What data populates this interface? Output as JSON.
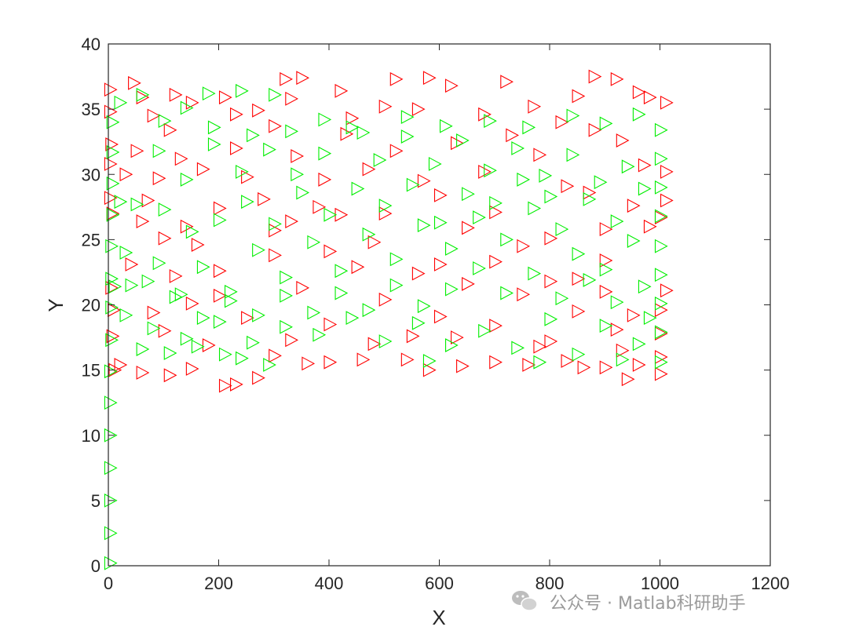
{
  "chart_data": {
    "type": "scatter",
    "xlabel": "X",
    "ylabel": "Y",
    "xlim": [
      0,
      1200
    ],
    "ylim": [
      0,
      40
    ],
    "xticks": [
      "0",
      "200",
      "400",
      "600",
      "800",
      "1000",
      "1200"
    ],
    "yticks": [
      "0",
      "5",
      "10",
      "15",
      "20",
      "25",
      "30",
      "35",
      "40"
    ],
    "grid": false,
    "marker": "right-pointing triangle (hollow)",
    "series": [
      {
        "color": "#ff0000",
        "values": [
          [
            2,
            36.5
          ],
          [
            2,
            34.8
          ],
          [
            4,
            32.3
          ],
          [
            2,
            30.8
          ],
          [
            2,
            28.2
          ],
          [
            6,
            27.0
          ],
          [
            4,
            21.3
          ],
          [
            8,
            19.6
          ],
          [
            6,
            17.6
          ],
          [
            10,
            15.0
          ],
          [
            45,
            37.0
          ],
          [
            60,
            35.9
          ],
          [
            80,
            34.5
          ],
          [
            120,
            36.1
          ],
          [
            150,
            35.5
          ],
          [
            210,
            35.9
          ],
          [
            270,
            34.9
          ],
          [
            320,
            37.3
          ],
          [
            350,
            37.4
          ],
          [
            420,
            36.4
          ],
          [
            500,
            35.2
          ],
          [
            520,
            37.3
          ],
          [
            580,
            37.4
          ],
          [
            620,
            36.8
          ],
          [
            720,
            37.1
          ],
          [
            850,
            36.0
          ],
          [
            880,
            37.5
          ],
          [
            920,
            37.3
          ],
          [
            960,
            36.3
          ],
          [
            980,
            35.9
          ],
          [
            1010,
            35.5
          ],
          [
            1010,
            30.2
          ],
          [
            1010,
            28.0
          ],
          [
            1000,
            26.7
          ],
          [
            1010,
            21.1
          ],
          [
            1000,
            19.6
          ],
          [
            1000,
            16.0
          ],
          [
            1000,
            14.7
          ],
          [
            960,
            15.4
          ],
          [
            940,
            14.3
          ],
          [
            900,
            15.2
          ],
          [
            860,
            15.2
          ],
          [
            830,
            15.7
          ],
          [
            760,
            15.4
          ],
          [
            700,
            15.6
          ],
          [
            640,
            15.3
          ],
          [
            580,
            15.0
          ],
          [
            540,
            15.8
          ],
          [
            460,
            15.8
          ],
          [
            400,
            15.6
          ],
          [
            360,
            15.5
          ],
          [
            300,
            16.1
          ],
          [
            270,
            14.4
          ],
          [
            230,
            13.9
          ],
          [
            210,
            13.8
          ],
          [
            150,
            15.1
          ],
          [
            110,
            14.6
          ],
          [
            60,
            14.8
          ],
          [
            20,
            15.4
          ],
          [
            50,
            31.8
          ],
          [
            90,
            29.7
          ],
          [
            130,
            31.2
          ],
          [
            170,
            30.4
          ],
          [
            230,
            32.0
          ],
          [
            280,
            28.1
          ],
          [
            330,
            26.4
          ],
          [
            380,
            27.5
          ],
          [
            420,
            26.9
          ],
          [
            480,
            24.8
          ],
          [
            560,
            22.4
          ],
          [
            600,
            23.1
          ],
          [
            650,
            25.9
          ],
          [
            700,
            27.1
          ],
          [
            750,
            24.5
          ],
          [
            800,
            25.1
          ],
          [
            850,
            22.0
          ],
          [
            900,
            21.0
          ],
          [
            950,
            19.2
          ],
          [
            980,
            26.0
          ],
          [
            970,
            30.7
          ],
          [
            930,
            32.6
          ],
          [
            880,
            33.4
          ],
          [
            830,
            29.1
          ],
          [
            780,
            31.5
          ],
          [
            730,
            33.0
          ],
          [
            680,
            30.2
          ],
          [
            630,
            32.4
          ],
          [
            570,
            29.5
          ],
          [
            520,
            31.8
          ],
          [
            470,
            30.4
          ],
          [
            430,
            33.1
          ],
          [
            390,
            29.6
          ],
          [
            340,
            31.4
          ],
          [
            300,
            33.7
          ],
          [
            250,
            29.8
          ],
          [
            200,
            27.4
          ],
          [
            160,
            24.6
          ],
          [
            120,
            22.2
          ],
          [
            80,
            19.4
          ],
          [
            40,
            23.1
          ],
          [
            60,
            26.4
          ],
          [
            100,
            18.0
          ],
          [
            150,
            20.1
          ],
          [
            200,
            22.6
          ],
          [
            250,
            19.0
          ],
          [
            300,
            23.8
          ],
          [
            350,
            21.3
          ],
          [
            400,
            18.5
          ],
          [
            450,
            22.9
          ],
          [
            500,
            20.4
          ],
          [
            550,
            17.6
          ],
          [
            600,
            19.1
          ],
          [
            650,
            21.6
          ],
          [
            700,
            18.4
          ],
          [
            750,
            20.8
          ],
          [
            800,
            17.2
          ],
          [
            850,
            19.5
          ],
          [
            900,
            23.4
          ],
          [
            950,
            27.6
          ],
          [
            920,
            18.1
          ],
          [
            870,
            28.6
          ],
          [
            820,
            34.0
          ],
          [
            770,
            35.2
          ],
          [
            680,
            34.6
          ],
          [
            560,
            35.0
          ],
          [
            440,
            34.3
          ],
          [
            330,
            35.8
          ],
          [
            230,
            34.6
          ],
          [
            110,
            33.4
          ],
          [
            30,
            30.0
          ],
          [
            70,
            28.0
          ],
          [
            140,
            26.0
          ],
          [
            180,
            16.9
          ],
          [
            330,
            17.3
          ],
          [
            480,
            17.0
          ],
          [
            630,
            17.5
          ],
          [
            780,
            16.8
          ],
          [
            930,
            16.5
          ],
          [
            1000,
            17.8
          ],
          [
            600,
            28.4
          ],
          [
            500,
            27.0
          ],
          [
            400,
            24.1
          ],
          [
            300,
            25.7
          ],
          [
            200,
            20.7
          ],
          [
            100,
            25.1
          ],
          [
            700,
            23.3
          ],
          [
            800,
            21.8
          ],
          [
            900,
            25.8
          ]
        ]
      },
      {
        "color": "#00ee00",
        "values": [
          [
            2,
            0.2
          ],
          [
            2,
            2.5
          ],
          [
            2,
            5.0
          ],
          [
            2,
            7.5
          ],
          [
            2,
            10.0
          ],
          [
            2,
            12.5
          ],
          [
            2,
            14.9
          ],
          [
            4,
            17.3
          ],
          [
            4,
            19.8
          ],
          [
            4,
            22.0
          ],
          [
            4,
            24.5
          ],
          [
            6,
            26.9
          ],
          [
            6,
            29.3
          ],
          [
            6,
            31.7
          ],
          [
            6,
            34.0
          ],
          [
            240,
            36.4
          ],
          [
            300,
            36.1
          ],
          [
            180,
            36.2
          ],
          [
            20,
            35.5
          ],
          [
            60,
            36.1
          ],
          [
            100,
            34.1
          ],
          [
            140,
            35.1
          ],
          [
            190,
            33.6
          ],
          [
            260,
            33.0
          ],
          [
            330,
            33.3
          ],
          [
            390,
            34.2
          ],
          [
            460,
            33.2
          ],
          [
            540,
            34.4
          ],
          [
            610,
            33.7
          ],
          [
            690,
            34.1
          ],
          [
            760,
            33.6
          ],
          [
            840,
            34.5
          ],
          [
            900,
            33.9
          ],
          [
            960,
            34.6
          ],
          [
            1000,
            33.4
          ],
          [
            1000,
            31.2
          ],
          [
            1000,
            29.0
          ],
          [
            1000,
            26.8
          ],
          [
            1000,
            24.5
          ],
          [
            1000,
            22.3
          ],
          [
            1000,
            20.1
          ],
          [
            1000,
            17.9
          ],
          [
            1000,
            15.6
          ],
          [
            960,
            17.0
          ],
          [
            900,
            18.4
          ],
          [
            850,
            16.2
          ],
          [
            800,
            18.9
          ],
          [
            740,
            16.7
          ],
          [
            680,
            18.0
          ],
          [
            620,
            16.9
          ],
          [
            560,
            18.6
          ],
          [
            500,
            17.2
          ],
          [
            440,
            19.0
          ],
          [
            380,
            17.7
          ],
          [
            320,
            18.3
          ],
          [
            260,
            17.1
          ],
          [
            200,
            18.7
          ],
          [
            140,
            17.4
          ],
          [
            80,
            18.2
          ],
          [
            30,
            19.2
          ],
          [
            40,
            21.5
          ],
          [
            90,
            23.2
          ],
          [
            130,
            20.8
          ],
          [
            170,
            22.9
          ],
          [
            220,
            21.0
          ],
          [
            270,
            24.2
          ],
          [
            320,
            22.1
          ],
          [
            370,
            24.8
          ],
          [
            420,
            22.6
          ],
          [
            470,
            25.4
          ],
          [
            520,
            23.5
          ],
          [
            570,
            26.1
          ],
          [
            620,
            24.3
          ],
          [
            670,
            26.7
          ],
          [
            720,
            25.0
          ],
          [
            770,
            27.4
          ],
          [
            820,
            25.8
          ],
          [
            870,
            28.1
          ],
          [
            920,
            26.4
          ],
          [
            970,
            28.9
          ],
          [
            940,
            30.6
          ],
          [
            890,
            29.4
          ],
          [
            840,
            31.5
          ],
          [
            790,
            29.9
          ],
          [
            740,
            32.0
          ],
          [
            690,
            30.3
          ],
          [
            640,
            32.6
          ],
          [
            590,
            30.8
          ],
          [
            540,
            32.9
          ],
          [
            490,
            31.1
          ],
          [
            440,
            33.6
          ],
          [
            390,
            31.6
          ],
          [
            340,
            30.0
          ],
          [
            290,
            31.9
          ],
          [
            240,
            30.2
          ],
          [
            190,
            32.3
          ],
          [
            140,
            29.6
          ],
          [
            90,
            31.8
          ],
          [
            50,
            27.7
          ],
          [
            100,
            27.3
          ],
          [
            150,
            25.6
          ],
          [
            200,
            26.5
          ],
          [
            250,
            27.9
          ],
          [
            300,
            26.2
          ],
          [
            350,
            28.6
          ],
          [
            400,
            26.9
          ],
          [
            450,
            28.9
          ],
          [
            500,
            27.6
          ],
          [
            550,
            29.2
          ],
          [
            600,
            26.3
          ],
          [
            650,
            28.5
          ],
          [
            700,
            27.8
          ],
          [
            750,
            29.6
          ],
          [
            800,
            28.3
          ],
          [
            850,
            23.9
          ],
          [
            900,
            22.7
          ],
          [
            950,
            24.9
          ],
          [
            970,
            21.4
          ],
          [
            920,
            20.2
          ],
          [
            870,
            21.9
          ],
          [
            820,
            20.5
          ],
          [
            770,
            22.4
          ],
          [
            720,
            20.9
          ],
          [
            670,
            22.8
          ],
          [
            620,
            21.2
          ],
          [
            570,
            19.9
          ],
          [
            520,
            21.5
          ],
          [
            470,
            19.6
          ],
          [
            420,
            20.9
          ],
          [
            370,
            19.4
          ],
          [
            320,
            20.7
          ],
          [
            270,
            19.2
          ],
          [
            220,
            20.3
          ],
          [
            170,
            19.0
          ],
          [
            120,
            20.6
          ],
          [
            70,
            21.8
          ],
          [
            60,
            16.6
          ],
          [
            110,
            16.3
          ],
          [
            160,
            16.8
          ],
          [
            210,
            16.2
          ],
          [
            240,
            15.9
          ],
          [
            290,
            15.4
          ],
          [
            580,
            15.7
          ],
          [
            780,
            15.6
          ],
          [
            930,
            15.8
          ],
          [
            980,
            19.0
          ],
          [
            10,
            21.4
          ],
          [
            30,
            24.0
          ],
          [
            20,
            27.9
          ]
        ]
      }
    ]
  },
  "watermark": {
    "text": "公众号 · Matlab科研助手",
    "icon": "wechat-icon"
  }
}
